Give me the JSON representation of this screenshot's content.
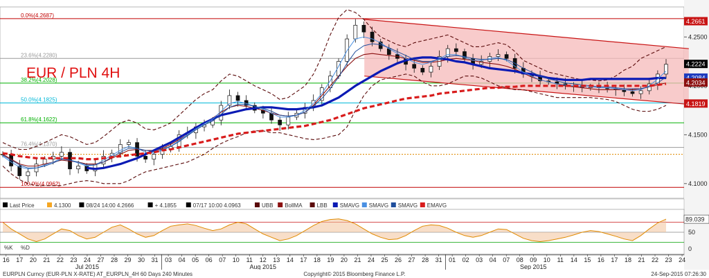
{
  "chart_data": {
    "type": "candlestick",
    "title": "EUR / PLN 4H",
    "title_color": "#e01010",
    "ylim": [
      4.085,
      4.275
    ],
    "y_ticks": [
      "4.2500",
      "4.2000",
      "4.1500",
      "4.1000"
    ],
    "y_tick_values": [
      4.25,
      4.2,
      4.15,
      4.1
    ],
    "x_day_labels": [
      "16",
      "17",
      "20",
      "21",
      "22",
      "23",
      "24",
      "27",
      "28",
      "29",
      "30",
      "31",
      "03",
      "04",
      "05",
      "06",
      "07",
      "10",
      "11",
      "12",
      "13",
      "14",
      "17",
      "18",
      "19",
      "20",
      "21",
      "24",
      "25",
      "26",
      "27",
      "28",
      "31",
      "01",
      "02",
      "03",
      "04",
      "07",
      "08",
      "09",
      "10",
      "11",
      "14",
      "15",
      "16",
      "17",
      "18",
      "21",
      "22",
      "23",
      "24"
    ],
    "x_month_labels": [
      {
        "label": "Jul 2015",
        "day_index": 6
      },
      {
        "label": "Aug 2015",
        "day_index": 19
      },
      {
        "label": "Sep 2015",
        "day_index": 39
      }
    ],
    "fib_levels": [
      {
        "label": "0.0%(4.2687)",
        "value": 4.2687,
        "color": "#c00000"
      },
      {
        "label": "23.6%(4.2280)",
        "value": 4.228,
        "color": "#9a9a9a"
      },
      {
        "label": "38.2%(4.2028)",
        "value": 4.2028,
        "color": "#00b000"
      },
      {
        "label": "50.0%(4.1825)",
        "value": 4.1825,
        "color": "#00b8d8"
      },
      {
        "label": "61.8%(4.1622)",
        "value": 4.1622,
        "color": "#00b000"
      },
      {
        "label": "76.4%(4.1370)",
        "value": 4.137,
        "color": "#9a9a9a"
      },
      {
        "label": "",
        "value": 4.13,
        "color": "#e08a00",
        "dashed": true
      },
      {
        "label": "100.0%(4.0962)",
        "value": 4.0962,
        "color": "#c00000"
      }
    ],
    "price_flags": [
      {
        "label": "4.2661",
        "value": 4.2661,
        "bg": "#c81414",
        "fg": "#ffffff"
      },
      {
        "label": "4.2224",
        "value": 4.2224,
        "bg": "#000000",
        "fg": "#ffffff"
      },
      {
        "label": "4.2084",
        "value": 4.2084,
        "bg": "#1e3cbe",
        "fg": "#ffffff"
      },
      {
        "label": "4.2034",
        "value": 4.2034,
        "bg": "#8b1010",
        "fg": "#ffffff"
      },
      {
        "label": "4.1819",
        "value": 4.1819,
        "bg": "#c81414",
        "fg": "#ffffff"
      }
    ],
    "channel": {
      "start_day": 26.5,
      "end_day": 50.5,
      "upper": [
        4.268,
        4.238
      ],
      "lower": [
        4.21,
        4.181
      ]
    },
    "closes": [
      4.13,
      4.118,
      4.108,
      4.112,
      4.12,
      4.125,
      4.128,
      4.132,
      4.115,
      4.118,
      4.113,
      4.12,
      4.128,
      4.131,
      4.14,
      4.142,
      4.128,
      4.125,
      4.13,
      4.135,
      4.138,
      4.15,
      4.152,
      4.158,
      4.16,
      4.165,
      4.18,
      4.19,
      4.185,
      4.18,
      4.175,
      4.172,
      4.165,
      4.16,
      4.168,
      4.172,
      4.178,
      4.185,
      4.198,
      4.21,
      4.225,
      4.248,
      4.262,
      4.255,
      4.245,
      4.238,
      4.232,
      4.228,
      4.222,
      4.218,
      4.214,
      4.22,
      4.23,
      4.238,
      4.235,
      4.228,
      4.222,
      4.225,
      4.23,
      4.232,
      4.228,
      4.218,
      4.212,
      4.21,
      4.205,
      4.204,
      4.202,
      4.2,
      4.2,
      4.198,
      4.199,
      4.198,
      4.197,
      4.196,
      4.194,
      4.192,
      4.195,
      4.202,
      4.212,
      4.222
    ],
    "series": [
      {
        "name": "UBB",
        "color": "#5a0a0a",
        "dashed": true,
        "values": [
          4.142,
          4.138,
          4.135,
          4.135,
          4.138,
          4.142,
          4.146,
          4.15,
          4.148,
          4.144,
          4.14,
          4.142,
          4.148,
          4.155,
          4.162,
          4.165,
          4.162,
          4.156,
          4.155,
          4.158,
          4.162,
          4.17,
          4.178,
          4.186,
          4.192,
          4.196,
          4.205,
          4.212,
          4.21,
          4.205,
          4.2,
          4.196,
          4.192,
          4.186,
          4.188,
          4.194,
          4.2,
          4.212,
          4.23,
          4.252,
          4.27,
          4.278,
          4.275,
          4.268,
          4.258,
          4.25,
          4.246,
          4.242,
          4.24,
          4.244,
          4.246,
          4.248,
          4.25,
          4.252,
          4.248,
          4.244,
          4.24,
          4.24,
          4.242,
          4.244,
          4.242,
          4.235,
          4.226,
          4.222,
          4.218,
          4.214,
          4.212,
          4.21,
          4.208,
          4.206,
          4.206,
          4.205,
          4.206,
          4.21,
          4.216,
          4.22,
          4.228,
          4.232,
          4.236,
          4.24
        ]
      },
      {
        "name": "BollMA",
        "color": "#8b1010",
        "values": [
          4.13,
          4.125,
          4.12,
          4.118,
          4.118,
          4.12,
          4.122,
          4.124,
          4.123,
          4.122,
          4.12,
          4.12,
          4.122,
          4.126,
          4.13,
          4.134,
          4.135,
          4.134,
          4.134,
          4.136,
          4.14,
          4.145,
          4.15,
          4.156,
          4.162,
          4.167,
          4.173,
          4.178,
          4.18,
          4.179,
          4.177,
          4.175,
          4.172,
          4.17,
          4.169,
          4.17,
          4.173,
          4.18,
          4.19,
          4.2,
          4.21,
          4.22,
          4.228,
          4.232,
          4.233,
          4.232,
          4.231,
          4.23,
          4.228,
          4.226,
          4.224,
          4.224,
          4.225,
          4.227,
          4.228,
          4.227,
          4.226,
          4.224,
          4.223,
          4.222,
          4.22,
          4.217,
          4.213,
          4.209,
          4.206,
          4.204,
          4.202,
          4.2,
          4.199,
          4.198,
          4.197,
          4.196,
          4.196,
          4.196,
          4.196,
          4.196,
          4.197,
          4.199,
          4.201,
          4.203
        ]
      },
      {
        "name": "LBB",
        "color": "#5a0a0a",
        "dashed": true,
        "values": [
          4.118,
          4.11,
          4.104,
          4.1,
          4.098,
          4.098,
          4.098,
          4.098,
          4.1,
          4.102,
          4.103,
          4.102,
          4.1,
          4.1,
          4.1,
          4.103,
          4.108,
          4.112,
          4.114,
          4.116,
          4.118,
          4.12,
          4.122,
          4.126,
          4.13,
          4.136,
          4.141,
          4.145,
          4.148,
          4.152,
          4.154,
          4.154,
          4.152,
          4.152,
          4.15,
          4.148,
          4.146,
          4.145,
          4.146,
          4.148,
          4.15,
          4.158,
          4.175,
          4.19,
          4.2,
          4.206,
          4.208,
          4.21,
          4.212,
          4.21,
          4.204,
          4.2,
          4.2,
          4.202,
          4.206,
          4.21,
          4.21,
          4.208,
          4.204,
          4.2,
          4.198,
          4.196,
          4.196,
          4.194,
          4.192,
          4.19,
          4.188,
          4.188,
          4.188,
          4.188,
          4.188,
          4.187,
          4.186,
          4.184,
          4.18,
          4.176,
          4.174,
          4.174,
          4.176,
          4.18
        ]
      },
      {
        "name": "SMAVG",
        "color": "#0a1ab4",
        "width": 3.2,
        "values": [
          null,
          null,
          null,
          null,
          null,
          null,
          null,
          null,
          null,
          null,
          4.116,
          4.115,
          4.116,
          4.118,
          4.12,
          4.123,
          4.126,
          4.13,
          4.134,
          4.138,
          4.142,
          4.147,
          4.152,
          4.157,
          4.162,
          4.166,
          4.17,
          4.172,
          4.174,
          4.176,
          4.177,
          4.178,
          4.178,
          4.177,
          4.176,
          4.176,
          4.177,
          4.178,
          4.18,
          4.184,
          4.188,
          4.194,
          4.2,
          4.205,
          4.21,
          4.215,
          4.219,
          4.223,
          4.226,
          4.228,
          4.229,
          4.229,
          4.228,
          4.227,
          4.225,
          4.224,
          4.222,
          4.22,
          4.218,
          4.217,
          4.216,
          4.215,
          4.213,
          4.212,
          4.21,
          4.208,
          4.207,
          4.206,
          4.206,
          4.206,
          4.207,
          4.207,
          4.207,
          4.207,
          4.207,
          4.207,
          4.207,
          4.207,
          4.208,
          4.208
        ]
      },
      {
        "name": "SMAVG",
        "color": "#4a90e2",
        "width": 1,
        "values": [
          4.128,
          4.122,
          4.117,
          4.115,
          4.116,
          4.119,
          4.122,
          4.126,
          4.124,
          4.121,
          4.118,
          4.119,
          4.124,
          4.129,
          4.134,
          4.138,
          4.136,
          4.132,
          4.131,
          4.134,
          4.138,
          4.144,
          4.15,
          4.156,
          4.161,
          4.166,
          4.174,
          4.182,
          4.184,
          4.182,
          4.179,
          4.176,
          4.172,
          4.168,
          4.168,
          4.17,
          4.175,
          4.182,
          4.192,
          4.205,
          4.22,
          4.236,
          4.248,
          4.25,
          4.248,
          4.244,
          4.238,
          4.233,
          4.228,
          4.224,
          4.222,
          4.224,
          4.228,
          4.232,
          4.232,
          4.229,
          4.226,
          4.226,
          4.228,
          4.229,
          4.226,
          4.22,
          4.214,
          4.21,
          4.206,
          4.204,
          4.202,
          4.201,
          4.2,
          4.199,
          4.199,
          4.198,
          4.198,
          4.197,
          4.196,
          4.195,
          4.196,
          4.2,
          4.207,
          4.215
        ]
      },
      {
        "name": "SMAVG",
        "color": "#1f4e9c",
        "width": 1,
        "values": [
          4.129,
          4.124,
          4.119,
          4.116,
          4.116,
          4.118,
          4.121,
          4.125,
          4.124,
          4.122,
          4.119,
          4.119,
          4.122,
          4.127,
          4.132,
          4.136,
          4.136,
          4.134,
          4.133,
          4.135,
          4.138,
          4.143,
          4.149,
          4.155,
          4.16,
          4.164,
          4.171,
          4.178,
          4.181,
          4.181,
          4.179,
          4.177,
          4.174,
          4.17,
          4.169,
          4.17,
          4.173,
          4.179,
          4.187,
          4.197,
          4.209,
          4.223,
          4.235,
          4.241,
          4.243,
          4.242,
          4.239,
          4.235,
          4.231,
          4.227,
          4.225,
          4.225,
          4.227,
          4.23,
          4.231,
          4.23,
          4.228,
          4.227,
          4.227,
          4.228,
          4.227,
          4.223,
          4.218,
          4.214,
          4.21,
          4.207,
          4.205,
          4.203,
          4.202,
          4.201,
          4.2,
          4.199,
          4.199,
          4.198,
          4.197,
          4.197,
          4.197,
          4.199,
          4.203,
          4.209
        ]
      },
      {
        "name": "EMAVG",
        "color": "#d81c1c",
        "dashed": true,
        "width": 3.2,
        "values": [
          4.131,
          4.13,
          4.128,
          4.127,
          4.126,
          4.126,
          4.126,
          4.126,
          4.126,
          4.126,
          4.125,
          4.125,
          4.126,
          4.127,
          4.128,
          4.129,
          4.13,
          4.131,
          4.132,
          4.134,
          4.135,
          4.137,
          4.139,
          4.141,
          4.143,
          4.145,
          4.147,
          4.149,
          4.151,
          4.152,
          4.153,
          4.154,
          4.155,
          4.156,
          4.157,
          4.158,
          4.159,
          4.161,
          4.163,
          4.165,
          4.168,
          4.171,
          4.174,
          4.177,
          4.179,
          4.181,
          4.183,
          4.185,
          4.187,
          4.188,
          4.189,
          4.19,
          4.192,
          4.193,
          4.194,
          4.195,
          4.196,
          4.197,
          4.198,
          4.198,
          4.199,
          4.199,
          4.2,
          4.2,
          4.2,
          4.2,
          4.2,
          4.2,
          4.2,
          4.2,
          4.2,
          4.2,
          4.2,
          4.2,
          4.2,
          4.2,
          4.2,
          4.2,
          4.201,
          4.202
        ]
      }
    ],
    "legend": [
      {
        "label": "Last Price",
        "color": "#000000"
      },
      {
        "label": "4.1300",
        "color": "#f5a623"
      },
      {
        "label": "08/24 14:00 4.2666",
        "color": "#000000"
      },
      {
        "label": "+ 4.1855",
        "color": "#000000"
      },
      {
        "label": "07/17 10:00 4.0963",
        "color": "#000000"
      },
      {
        "label": "UBB",
        "color": "#5a0a0a"
      },
      {
        "label": "BollMA",
        "color": "#8b1010"
      },
      {
        "label": "LBB",
        "color": "#5a0a0a"
      },
      {
        "label": "SMAVG",
        "color": "#0a1ab4"
      },
      {
        "label": "SMAVG",
        "color": "#4a90e2"
      },
      {
        "label": "SMAVG",
        "color": "#1f4e9c"
      },
      {
        "label": "EMAVG",
        "color": "#d81c1c"
      }
    ],
    "oscillator": {
      "ylim": [
        -10,
        110
      ],
      "y_ticks": [
        0,
        50
      ],
      "lines": [
        20,
        50,
        80
      ],
      "last_value": "89.039",
      "legend": [
        "%K",
        "%D"
      ],
      "k_values": [
        80,
        60,
        45,
        30,
        22,
        30,
        45,
        60,
        55,
        40,
        30,
        35,
        50,
        65,
        72,
        60,
        45,
        35,
        40,
        55,
        68,
        72,
        75,
        70,
        62,
        55,
        60,
        72,
        80,
        75,
        60,
        45,
        35,
        25,
        30,
        40,
        55,
        70,
        82,
        88,
        90,
        85,
        75,
        60,
        45,
        35,
        28,
        30,
        40,
        55,
        68,
        72,
        70,
        62,
        50,
        40,
        35,
        40,
        50,
        60,
        58,
        45,
        32,
        25,
        22,
        25,
        30,
        35,
        42,
        50,
        55,
        52,
        45,
        38,
        30,
        25,
        40,
        60,
        78,
        89
      ]
    },
    "footer_left": "EURPLN Curncy (EUR-PLN X-RATE) AT_EURPLN_4H 60 Days 240 Minutes",
    "footer_center": "Copyright© 2015 Bloomberg Finance L.P.",
    "footer_right": "24-Sep-2015 07:26:30"
  }
}
